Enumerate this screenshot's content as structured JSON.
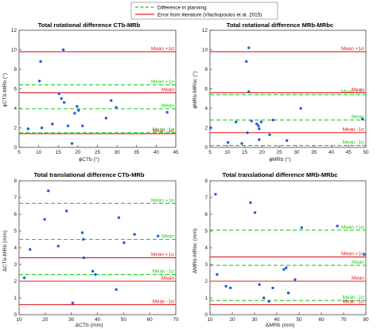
{
  "legend": {
    "location": "top-center",
    "entries": [
      {
        "label": "Difference in planning",
        "color": "#22cc22",
        "style": "dashed"
      },
      {
        "label": "Error from literature (Vlachopoulos et al. 2015)",
        "color": "#e02020",
        "style": "solid"
      }
    ]
  },
  "colors": {
    "points": "#1f5fd6",
    "planning": "#22cc22",
    "literature": "#e02020"
  },
  "chart_data": [
    {
      "type": "scatter",
      "title": "Total rotational difference CTb-MRb",
      "xlabel": "ϕCTb (°)",
      "ylabel": "ϕCTb-MRb (°)",
      "xlim": [
        5,
        45
      ],
      "ylim": [
        0,
        12
      ],
      "xticks": [
        "5",
        "10",
        "15",
        "20",
        "25",
        "30",
        "35",
        "40",
        "45"
      ],
      "yticks": [
        "0",
        "2",
        "4",
        "6",
        "8",
        "10",
        "12"
      ],
      "points": [
        [
          7.3,
          1.9
        ],
        [
          10.2,
          6.8
        ],
        [
          10.5,
          8.8
        ],
        [
          10.8,
          2.0
        ],
        [
          13.5,
          2.4
        ],
        [
          15.2,
          5.5
        ],
        [
          15.8,
          5.0
        ],
        [
          16.3,
          10.0
        ],
        [
          16.5,
          4.6
        ],
        [
          17.5,
          2.2
        ],
        [
          18.5,
          0.4
        ],
        [
          19.2,
          3.5
        ],
        [
          19.8,
          4.2
        ],
        [
          20.2,
          3.8
        ],
        [
          21.2,
          2.2
        ],
        [
          27.2,
          3.0
        ],
        [
          28.5,
          4.8
        ],
        [
          29.8,
          4.1
        ],
        [
          42.8,
          3.6
        ]
      ],
      "lines": [
        {
          "label": "Mean +1σ",
          "value": 9.8,
          "kind": "literature"
        },
        {
          "label": "Mean +1σ",
          "value": 6.4,
          "kind": "planning"
        },
        {
          "label": "Mean",
          "value": 5.6,
          "kind": "literature"
        },
        {
          "label": "Mean",
          "value": 3.95,
          "kind": "planning"
        },
        {
          "label": "Mean -1σ",
          "value": 1.5,
          "kind": "planning"
        },
        {
          "label": "Mean -1σ",
          "value": 1.4,
          "kind": "literature"
        }
      ],
      "grid": false
    },
    {
      "type": "scatter",
      "title": "Total rotational difference MRb-MRbc",
      "xlabel": "ϕMRb (°)",
      "ylabel": "ϕMRb-MRbc (°)",
      "xlim": [
        5,
        50
      ],
      "ylim": [
        0,
        12
      ],
      "xticks": [
        "5",
        "10",
        "15",
        "20",
        "25",
        "30",
        "35",
        "40",
        "45",
        "50"
      ],
      "yticks": [
        "0",
        "2",
        "4",
        "6",
        "8",
        "10",
        "12"
      ],
      "points": [
        [
          5.2,
          2.0
        ],
        [
          10.2,
          0.5
        ],
        [
          12.5,
          2.6
        ],
        [
          14.2,
          0.4
        ],
        [
          15.5,
          8.8
        ],
        [
          15.8,
          1.5
        ],
        [
          16.2,
          10.2
        ],
        [
          16.2,
          5.7
        ],
        [
          17.0,
          2.7
        ],
        [
          18.5,
          2.4
        ],
        [
          19.0,
          2.2
        ],
        [
          19.2,
          1.9
        ],
        [
          19.8,
          2.6
        ],
        [
          19.2,
          0.8
        ],
        [
          22.2,
          1.3
        ],
        [
          23.2,
          2.8
        ],
        [
          27.2,
          0.7
        ],
        [
          31.2,
          4.0
        ],
        [
          49.0,
          2.9
        ]
      ],
      "lines": [
        {
          "label": "Mean +1σ",
          "value": 9.8,
          "kind": "literature"
        },
        {
          "label": "Mean +1σ",
          "value": 5.4,
          "kind": "planning"
        },
        {
          "label": "Mean",
          "value": 5.6,
          "kind": "literature"
        },
        {
          "label": "Mean",
          "value": 2.8,
          "kind": "planning"
        },
        {
          "label": "Mean -1σ",
          "value": 1.5,
          "kind": "literature"
        },
        {
          "label": "Mean -1σ",
          "value": 0.2,
          "kind": "planning"
        }
      ],
      "grid": false
    },
    {
      "type": "scatter",
      "title": "Total translational difference CTb-MRb",
      "xlabel": "ΔCTb (mm)",
      "ylabel": "ΔCTb-MRb (mm)",
      "xlim": [
        10,
        70
      ],
      "ylim": [
        0,
        8
      ],
      "xticks": [
        "10",
        "20",
        "30",
        "40",
        "50",
        "60",
        "70"
      ],
      "yticks": [
        "0",
        "1",
        "2",
        "3",
        "4",
        "5",
        "6",
        "7",
        "8"
      ],
      "points": [
        [
          12.0,
          2.2
        ],
        [
          14.2,
          3.9
        ],
        [
          19.8,
          5.7
        ],
        [
          21.2,
          7.4
        ],
        [
          25.0,
          4.1
        ],
        [
          28.2,
          6.2
        ],
        [
          30.5,
          0.7
        ],
        [
          34.2,
          4.9
        ],
        [
          34.6,
          4.5
        ],
        [
          34.8,
          3.4
        ],
        [
          38.2,
          2.6
        ],
        [
          39.2,
          2.4
        ],
        [
          47.2,
          1.5
        ],
        [
          48.2,
          5.8
        ],
        [
          50.2,
          4.3
        ],
        [
          54.2,
          4.8
        ],
        [
          63.2,
          4.7
        ]
      ],
      "lines": [
        {
          "label": "Mean +1σ",
          "value": 6.65,
          "kind": "planning"
        },
        {
          "label": "Mean",
          "value": 4.5,
          "kind": "planning"
        },
        {
          "label": "Mean +1σ",
          "value": 3.4,
          "kind": "literature"
        },
        {
          "label": "Mean -1σ",
          "value": 2.4,
          "kind": "planning"
        },
        {
          "label": "Mean",
          "value": 2.0,
          "kind": "literature"
        },
        {
          "label": "Mean -1σ",
          "value": 0.6,
          "kind": "literature"
        }
      ],
      "grid": false
    },
    {
      "type": "scatter",
      "title": "Total translational difference MRb-MRbc",
      "xlabel": "ΔMRb (mm)",
      "ylabel": "ΔMRb-MRbc (mm)",
      "xlim": [
        10,
        80
      ],
      "ylim": [
        0,
        8
      ],
      "xticks": [
        "10",
        "20",
        "30",
        "40",
        "50",
        "60",
        "70",
        "80"
      ],
      "yticks": [
        "0",
        "1",
        "2",
        "3",
        "4",
        "5",
        "6",
        "7",
        "8"
      ],
      "points": [
        [
          12.5,
          7.2
        ],
        [
          13.2,
          2.4
        ],
        [
          17.2,
          1.7
        ],
        [
          19.2,
          1.6
        ],
        [
          28.2,
          6.7
        ],
        [
          30.2,
          6.1
        ],
        [
          32.2,
          1.8
        ],
        [
          34.2,
          1.0
        ],
        [
          36.5,
          0.8
        ],
        [
          38.2,
          1.6
        ],
        [
          43.2,
          2.7
        ],
        [
          44.2,
          2.8
        ],
        [
          45.2,
          1.3
        ],
        [
          48.2,
          2.1
        ],
        [
          51.2,
          5.2
        ],
        [
          67.2,
          5.3
        ],
        [
          79.3,
          3.6
        ]
      ],
      "lines": [
        {
          "label": "Mean +1σ",
          "value": 5.05,
          "kind": "planning"
        },
        {
          "label": "Mean +1σ",
          "value": 3.45,
          "kind": "literature"
        },
        {
          "label": "Mean",
          "value": 2.95,
          "kind": "planning"
        },
        {
          "label": "Mean",
          "value": 2.0,
          "kind": "literature"
        },
        {
          "label": "Mean -1σ",
          "value": 0.85,
          "kind": "planning"
        },
        {
          "label": "Mean -1σ",
          "value": 0.6,
          "kind": "literature"
        }
      ],
      "grid": false
    }
  ]
}
